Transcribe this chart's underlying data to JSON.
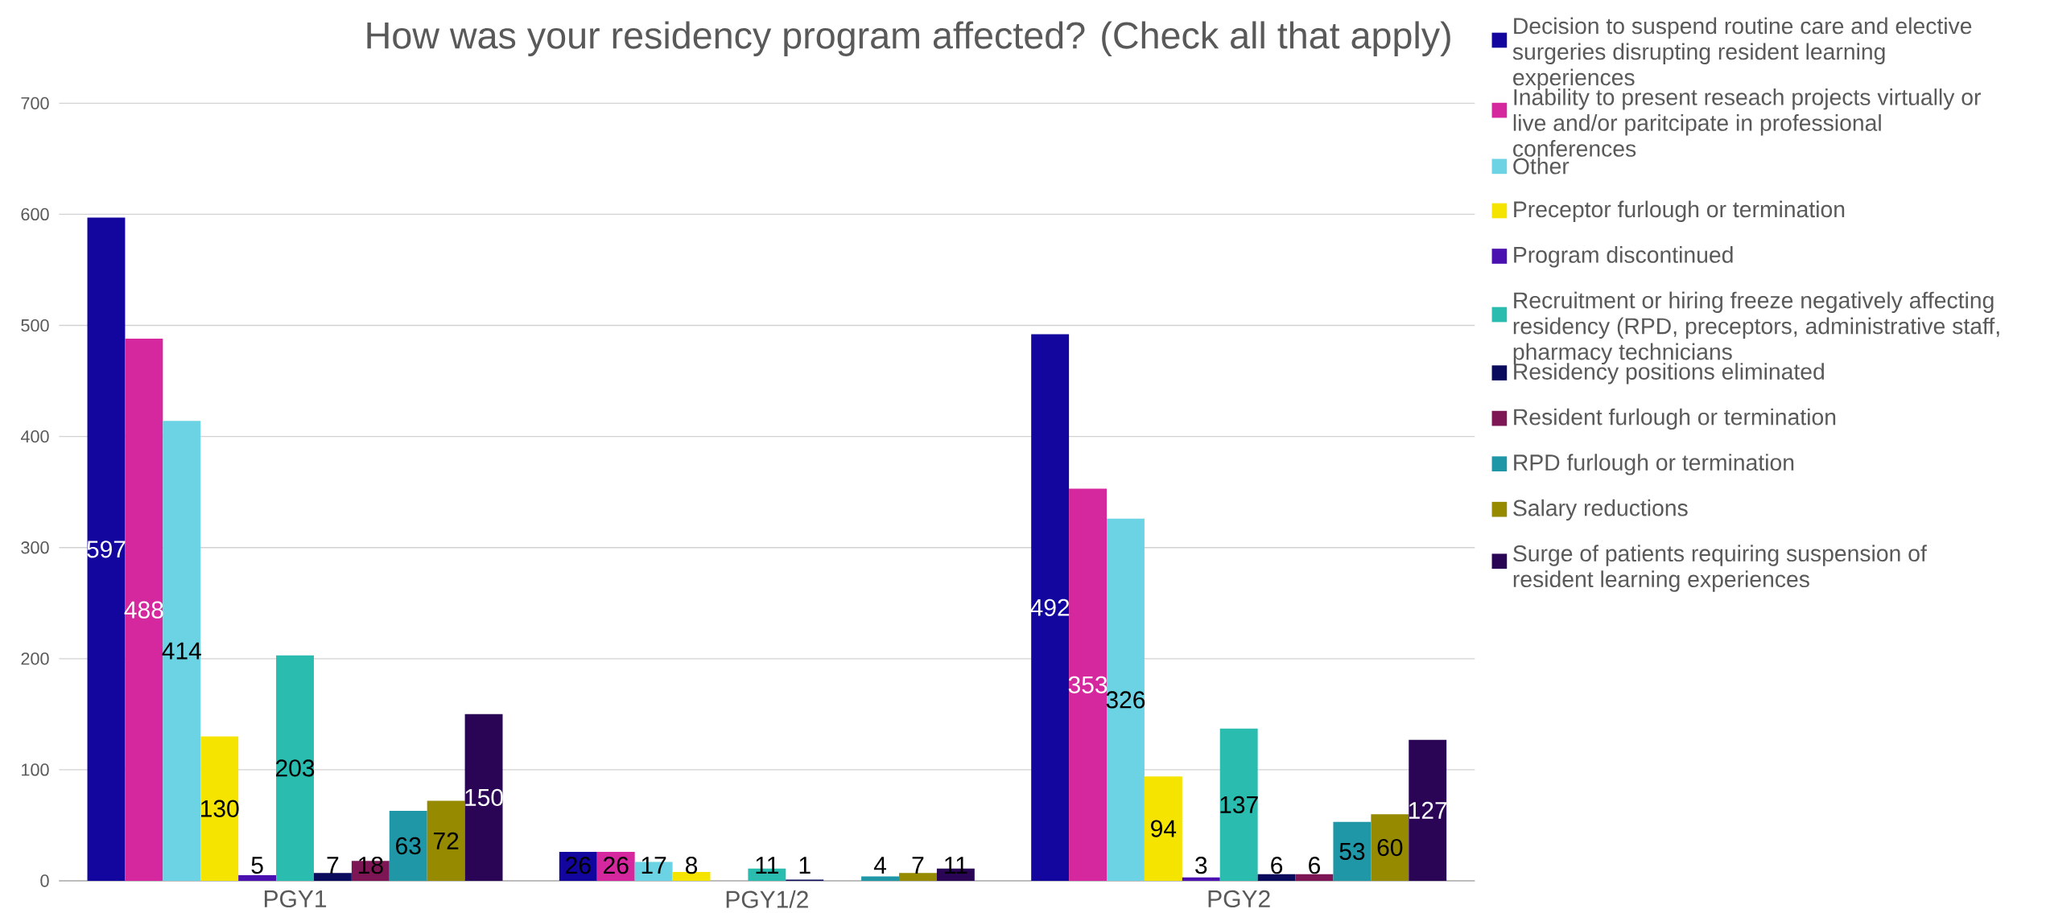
{
  "chart_data": {
    "type": "bar",
    "title": "How was your residency program affected? (Check all that apply)",
    "categories": [
      "PGY1",
      "PGY1/2",
      "PGY2"
    ],
    "series": [
      {
        "name": "Decision to suspend routine care and elective surgeries disrupting resident learning experiences",
        "color": "#12069e",
        "values": [
          597,
          26,
          492
        ]
      },
      {
        "name": "Inability to present reseach projects virtually or live and/or paritcipate in professional conferences",
        "color": "#d6289e",
        "values": [
          488,
          26,
          353
        ]
      },
      {
        "name": "Other",
        "color": "#6bd3e3",
        "values": [
          414,
          17,
          326
        ]
      },
      {
        "name": "Preceptor furlough or termination",
        "color": "#f5e400",
        "values": [
          130,
          8,
          94
        ]
      },
      {
        "name": "Program discontinued",
        "color": "#4a10b0",
        "values": [
          5,
          null,
          3
        ]
      },
      {
        "name": "Recruitment or hiring freeze negatively affecting residency (RPD, preceptors, administrative staff, pharmacy technicians",
        "color": "#2bbcb0",
        "values": [
          203,
          11,
          137
        ]
      },
      {
        "name": "Residency positions eliminated",
        "color": "#0b0b5e",
        "values": [
          7,
          1,
          6
        ]
      },
      {
        "name": "Resident furlough or termination",
        "color": "#7e1656",
        "values": [
          18,
          null,
          6
        ]
      },
      {
        "name": "RPD furlough or termination",
        "color": "#1f97a7",
        "values": [
          63,
          4,
          53
        ]
      },
      {
        "name": "Salary reductions",
        "color": "#968a00",
        "values": [
          72,
          7,
          60
        ]
      },
      {
        "name": "Surge of patients requiring suspension of resident learning experiences",
        "color": "#2a0455",
        "values": [
          150,
          11,
          127
        ]
      }
    ],
    "ylim": [
      0,
      700
    ],
    "yticks": [
      0,
      100,
      200,
      300,
      400,
      500,
      600,
      700
    ],
    "grid": "y",
    "legend": "right",
    "data_labels": true
  }
}
